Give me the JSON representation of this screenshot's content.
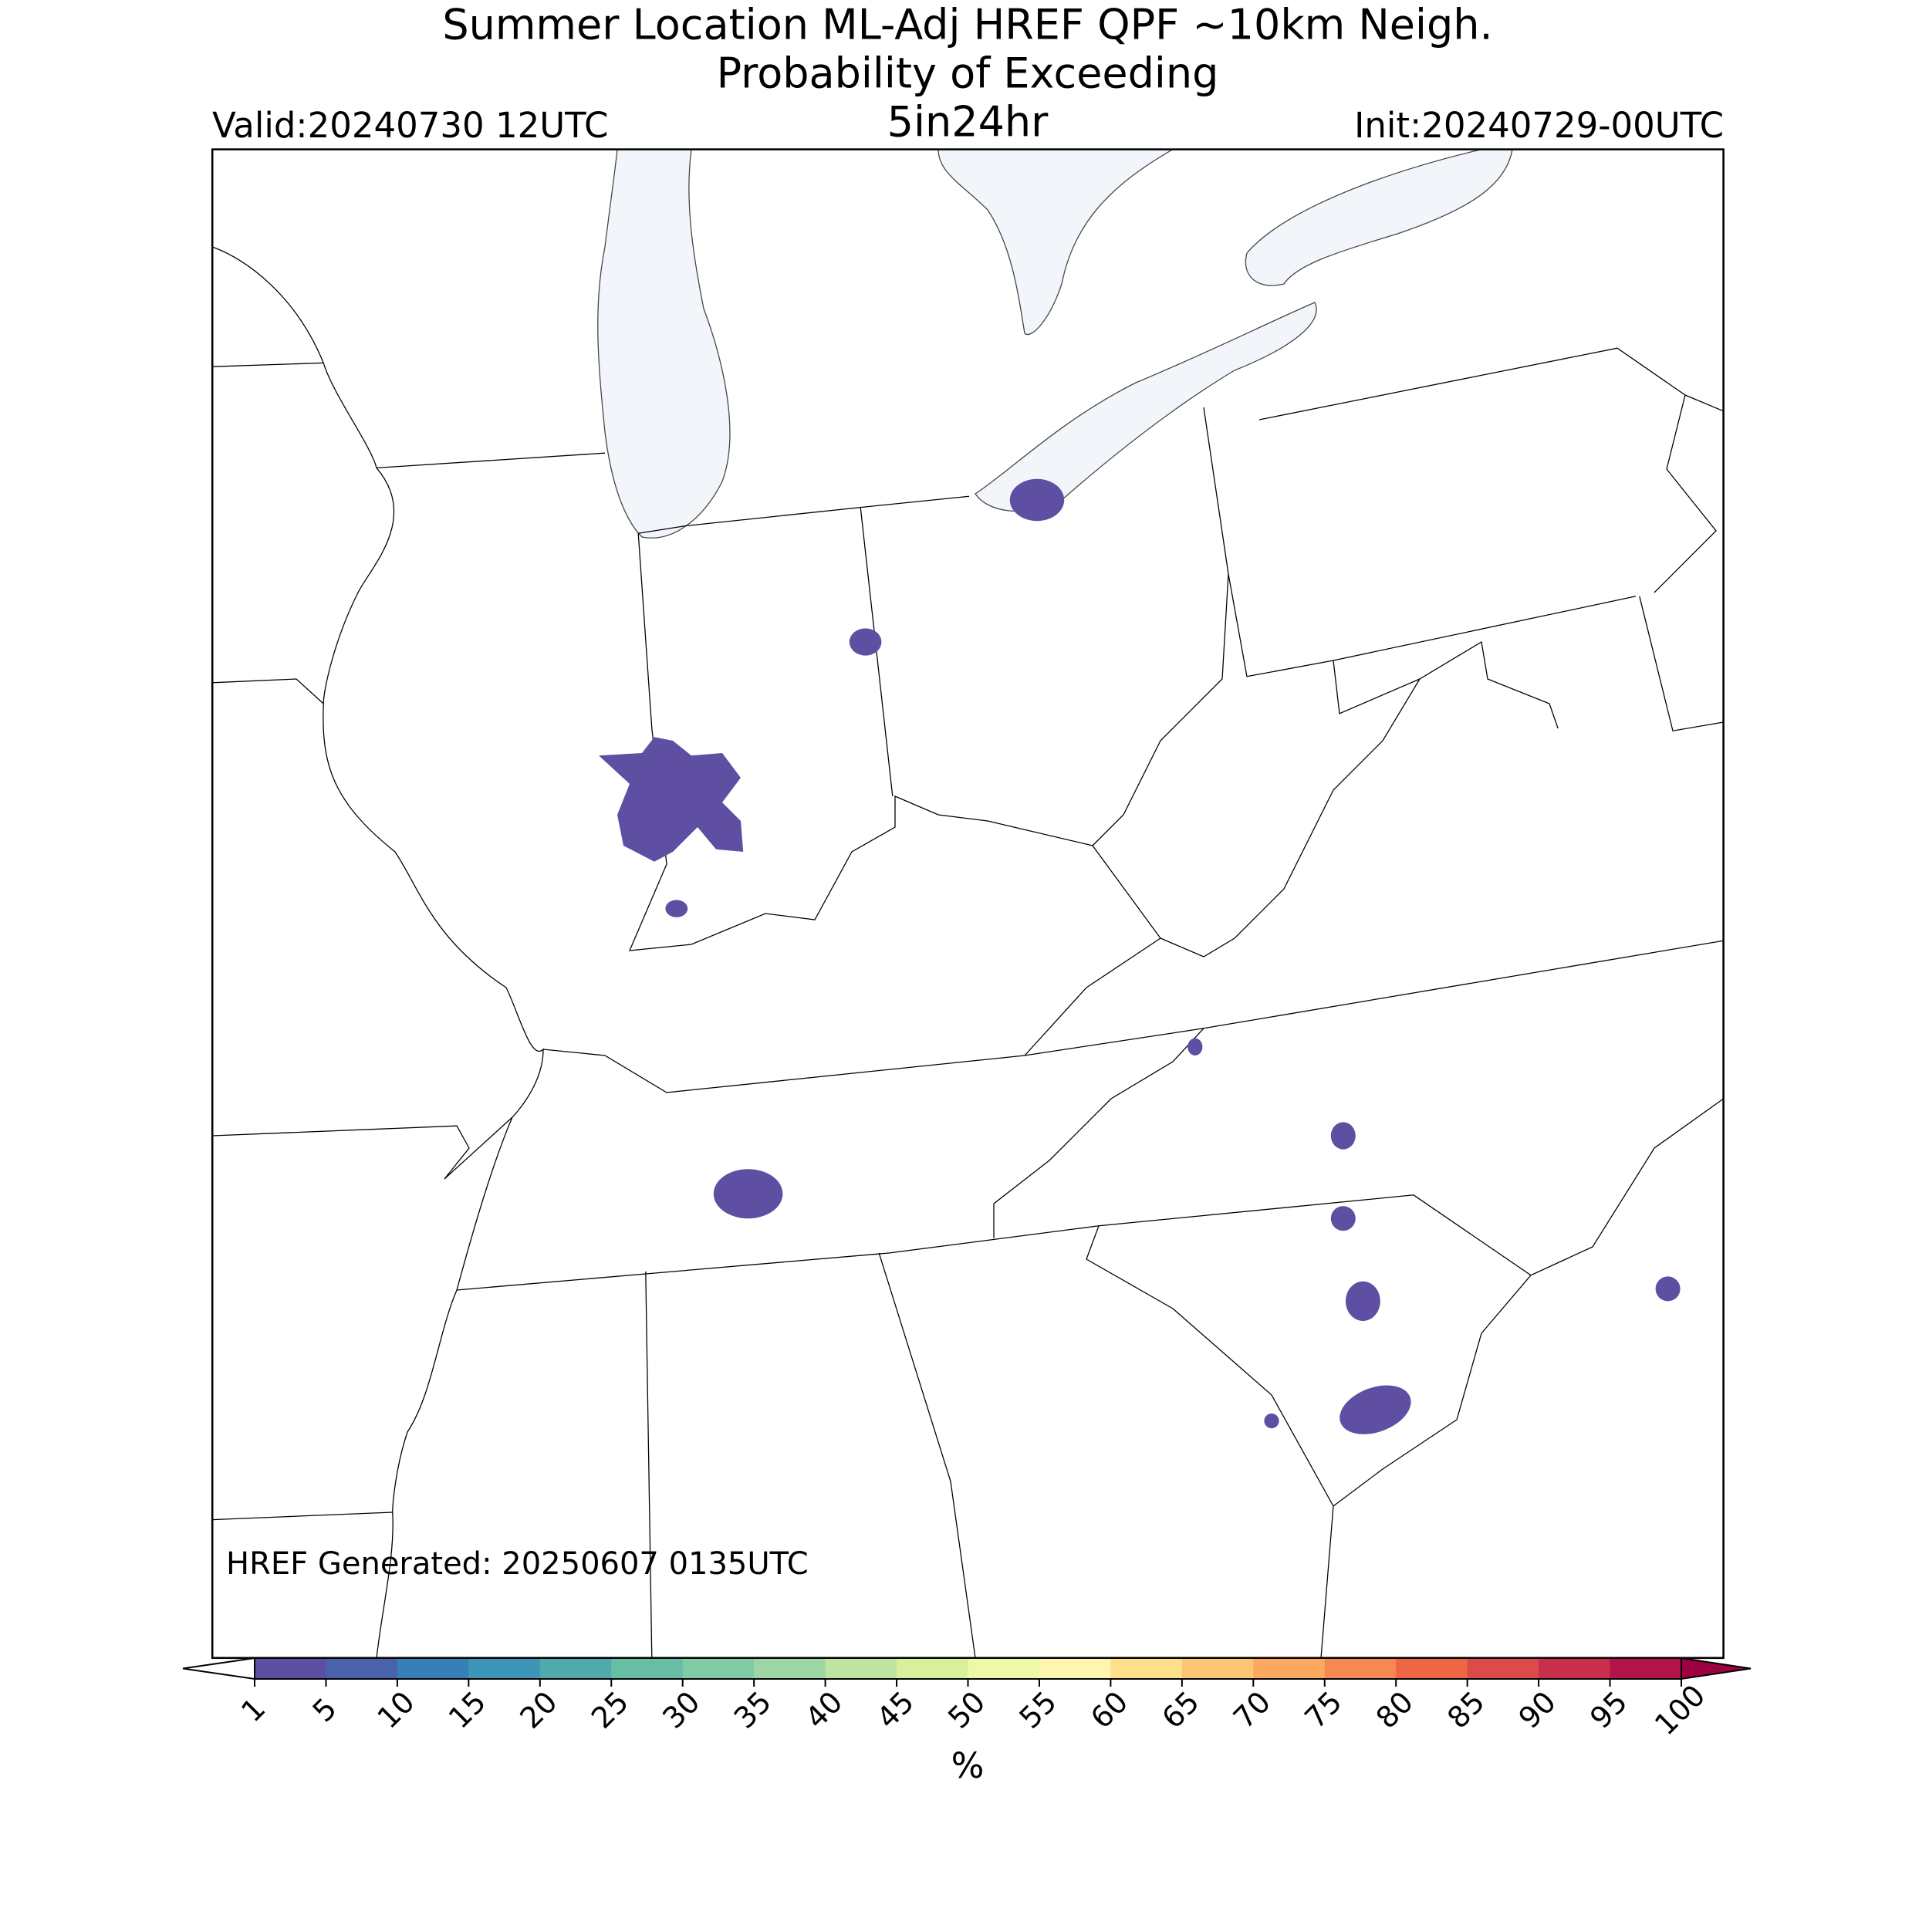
{
  "header": {
    "title": "Summer Location ML-Adj HREF QPF ~10km Neigh.",
    "subtitle": "Probability of Exceeding",
    "threshold": "5in24hr",
    "valid": "Valid:20240730 12UTC",
    "init": "Init:20240729-00UTC"
  },
  "map": {
    "generated": "HREF Generated: 20250607 0135UTC"
  },
  "colorbar": {
    "ticks": [
      1,
      5,
      10,
      15,
      20,
      25,
      30,
      35,
      40,
      45,
      50,
      55,
      60,
      65,
      70,
      75,
      80,
      85,
      90,
      95,
      100
    ],
    "colors": [
      "#5e4fa2",
      "#4a62ac",
      "#3580b9",
      "#3d95b8",
      "#4fa9ad",
      "#66bea4",
      "#80cba4",
      "#9dd6a4",
      "#bde4a0",
      "#d8ef9c",
      "#eff8a6",
      "#fef5af",
      "#fee08b",
      "#fdc675",
      "#fca85e",
      "#f78851",
      "#ee6744",
      "#dc4a4c",
      "#c72f4c",
      "#b0144a"
    ],
    "over_color": "#9e0142",
    "label": "%"
  }
}
